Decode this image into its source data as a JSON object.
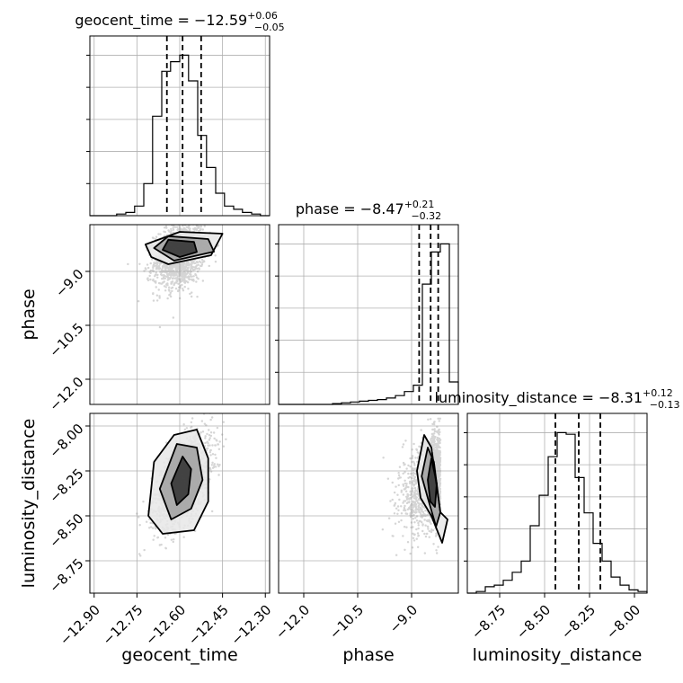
{
  "chart_data": {
    "type": "corner",
    "parameters": [
      "geocent_time",
      "phase",
      "luminosity_distance"
    ],
    "axis_labels": [
      "geocent_time",
      "phase",
      "luminosity_distance"
    ],
    "grid": true,
    "titles": [
      {
        "prefix": "geocent_time = ",
        "value": "−12.59",
        "plus": "+0.06",
        "minus": "−0.05"
      },
      {
        "prefix": "phase = ",
        "value": "−8.47",
        "plus": "+0.21",
        "minus": "−0.32"
      },
      {
        "prefix": "luminosity_distance = ",
        "value": "−8.31",
        "plus": "+0.12",
        "minus": "−0.13"
      }
    ],
    "ranges": [
      [
        -12.915,
        -12.285
      ],
      [
        -12.7,
        -7.7
      ],
      [
        -8.93,
        -7.93
      ]
    ],
    "ticks": [
      {
        "values": [
          -12.9,
          -12.75,
          -12.6,
          -12.45,
          -12.3
        ],
        "labels": [
          "−12.90",
          "−12.75",
          "−12.60",
          "−12.45",
          "−12.30"
        ]
      },
      {
        "values": [
          -12.0,
          -10.5,
          -9.0
        ],
        "labels": [
          "−12.0",
          "−10.5",
          "−9.0"
        ]
      },
      {
        "values": [
          -8.75,
          -8.5,
          -8.25,
          -8.0
        ],
        "labels": [
          "−8.75",
          "−8.50",
          "−8.25",
          "−8.00"
        ]
      }
    ],
    "quantiles": [
      [
        -12.645,
        -12.59,
        -12.525
      ],
      [
        -8.79,
        -8.47,
        -8.26
      ],
      [
        -8.44,
        -8.31,
        -8.19
      ]
    ],
    "histograms": [
      {
        "edges": [
          -12.915,
          -12.884,
          -12.852,
          -12.821,
          -12.789,
          -12.758,
          -12.726,
          -12.695,
          -12.663,
          -12.632,
          -12.6,
          -12.569,
          -12.537,
          -12.506,
          -12.474,
          -12.443,
          -12.411,
          -12.38,
          -12.348,
          -12.317,
          -12.285
        ],
        "counts": [
          0,
          0,
          0,
          0.01,
          0.02,
          0.06,
          0.2,
          0.62,
          0.9,
          0.96,
          1.0,
          0.84,
          0.5,
          0.3,
          0.14,
          0.06,
          0.04,
          0.02,
          0.01,
          0
        ]
      },
      {
        "edges": [
          -12.7,
          -12.45,
          -12.2,
          -11.95,
          -11.7,
          -11.45,
          -11.2,
          -10.95,
          -10.7,
          -10.45,
          -10.2,
          -9.95,
          -9.7,
          -9.45,
          -9.2,
          -8.95,
          -8.7,
          -8.45,
          -8.2,
          -7.95,
          -7.7
        ],
        "counts": [
          0,
          0,
          0,
          0,
          0,
          0,
          0.005,
          0.01,
          0.015,
          0.02,
          0.025,
          0.03,
          0.04,
          0.055,
          0.08,
          0.12,
          0.75,
          0.95,
          1.0,
          0.14
        ]
      },
      {
        "edges": [
          -8.93,
          -8.88,
          -8.83,
          -8.78,
          -8.73,
          -8.68,
          -8.63,
          -8.58,
          -8.53,
          -8.48,
          -8.43,
          -8.38,
          -8.33,
          -8.28,
          -8.23,
          -8.18,
          -8.13,
          -8.08,
          -8.03,
          -7.98,
          -7.93
        ],
        "counts": [
          0,
          0.01,
          0.04,
          0.05,
          0.08,
          0.13,
          0.2,
          0.42,
          0.61,
          0.85,
          1.0,
          0.99,
          0.72,
          0.5,
          0.31,
          0.2,
          0.1,
          0.05,
          0.02,
          0.01
        ]
      }
    ],
    "pairs": [
      {
        "x": 0,
        "y": 1,
        "mean": [
          -12.6,
          -8.55
        ],
        "sigma": [
          0.045,
          0.45
        ],
        "rho": 0.25,
        "contours": [
          [
            [
              -12.66,
              -8.4
            ],
            [
              -12.64,
              -8.12
            ],
            [
              -12.55,
              -8.18
            ],
            [
              -12.54,
              -8.46
            ],
            [
              -12.6,
              -8.6
            ]
          ],
          [
            [
              -12.69,
              -8.35
            ],
            [
              -12.64,
              -8.02
            ],
            [
              -12.5,
              -8.1
            ],
            [
              -12.48,
              -8.45
            ],
            [
              -12.62,
              -8.7
            ]
          ],
          [
            [
              -12.72,
              -8.25
            ],
            [
              -12.6,
              -7.9
            ],
            [
              -12.45,
              -7.95
            ],
            [
              -12.49,
              -8.55
            ],
            [
              -12.64,
              -8.8
            ],
            [
              -12.7,
              -8.6
            ]
          ]
        ]
      },
      {
        "x": 0,
        "y": 2,
        "mean": [
          -12.59,
          -8.31
        ],
        "sigma": [
          0.05,
          0.13
        ],
        "rho": 0.55,
        "contours": [
          [
            [
              -12.63,
              -8.32
            ],
            [
              -12.59,
              -8.17
            ],
            [
              -12.56,
              -8.24
            ],
            [
              -12.57,
              -8.38
            ],
            [
              -12.61,
              -8.44
            ]
          ],
          [
            [
              -12.67,
              -8.35
            ],
            [
              -12.61,
              -8.1
            ],
            [
              -12.54,
              -8.12
            ],
            [
              -12.52,
              -8.3
            ],
            [
              -12.56,
              -8.46
            ],
            [
              -12.63,
              -8.52
            ]
          ],
          [
            [
              -12.71,
              -8.5
            ],
            [
              -12.69,
              -8.2
            ],
            [
              -12.62,
              -8.05
            ],
            [
              -12.54,
              -8.02
            ],
            [
              -12.5,
              -8.18
            ],
            [
              -12.5,
              -8.42
            ],
            [
              -12.55,
              -8.58
            ],
            [
              -12.66,
              -8.6
            ]
          ]
        ]
      },
      {
        "x": 1,
        "y": 2,
        "mean": [
          -8.47,
          -8.31
        ],
        "sigma": [
          0.4,
          0.13
        ],
        "rho": 0.35,
        "contours": [
          [
            [
              -8.55,
              -8.3
            ],
            [
              -8.45,
              -8.18
            ],
            [
              -8.3,
              -8.32
            ],
            [
              -8.35,
              -8.45
            ],
            [
              -8.48,
              -8.42
            ]
          ],
          [
            [
              -8.72,
              -8.28
            ],
            [
              -8.55,
              -8.12
            ],
            [
              -8.38,
              -8.2
            ],
            [
              -8.2,
              -8.48
            ],
            [
              -8.32,
              -8.56
            ],
            [
              -8.55,
              -8.4
            ]
          ],
          [
            [
              -8.85,
              -8.25
            ],
            [
              -8.65,
              -8.05
            ],
            [
              -8.45,
              -8.12
            ],
            [
              -8.2,
              -8.48
            ],
            [
              -8.0,
              -8.52
            ],
            [
              -8.15,
              -8.65
            ],
            [
              -8.45,
              -8.5
            ],
            [
              -8.75,
              -8.4
            ]
          ]
        ]
      }
    ]
  }
}
